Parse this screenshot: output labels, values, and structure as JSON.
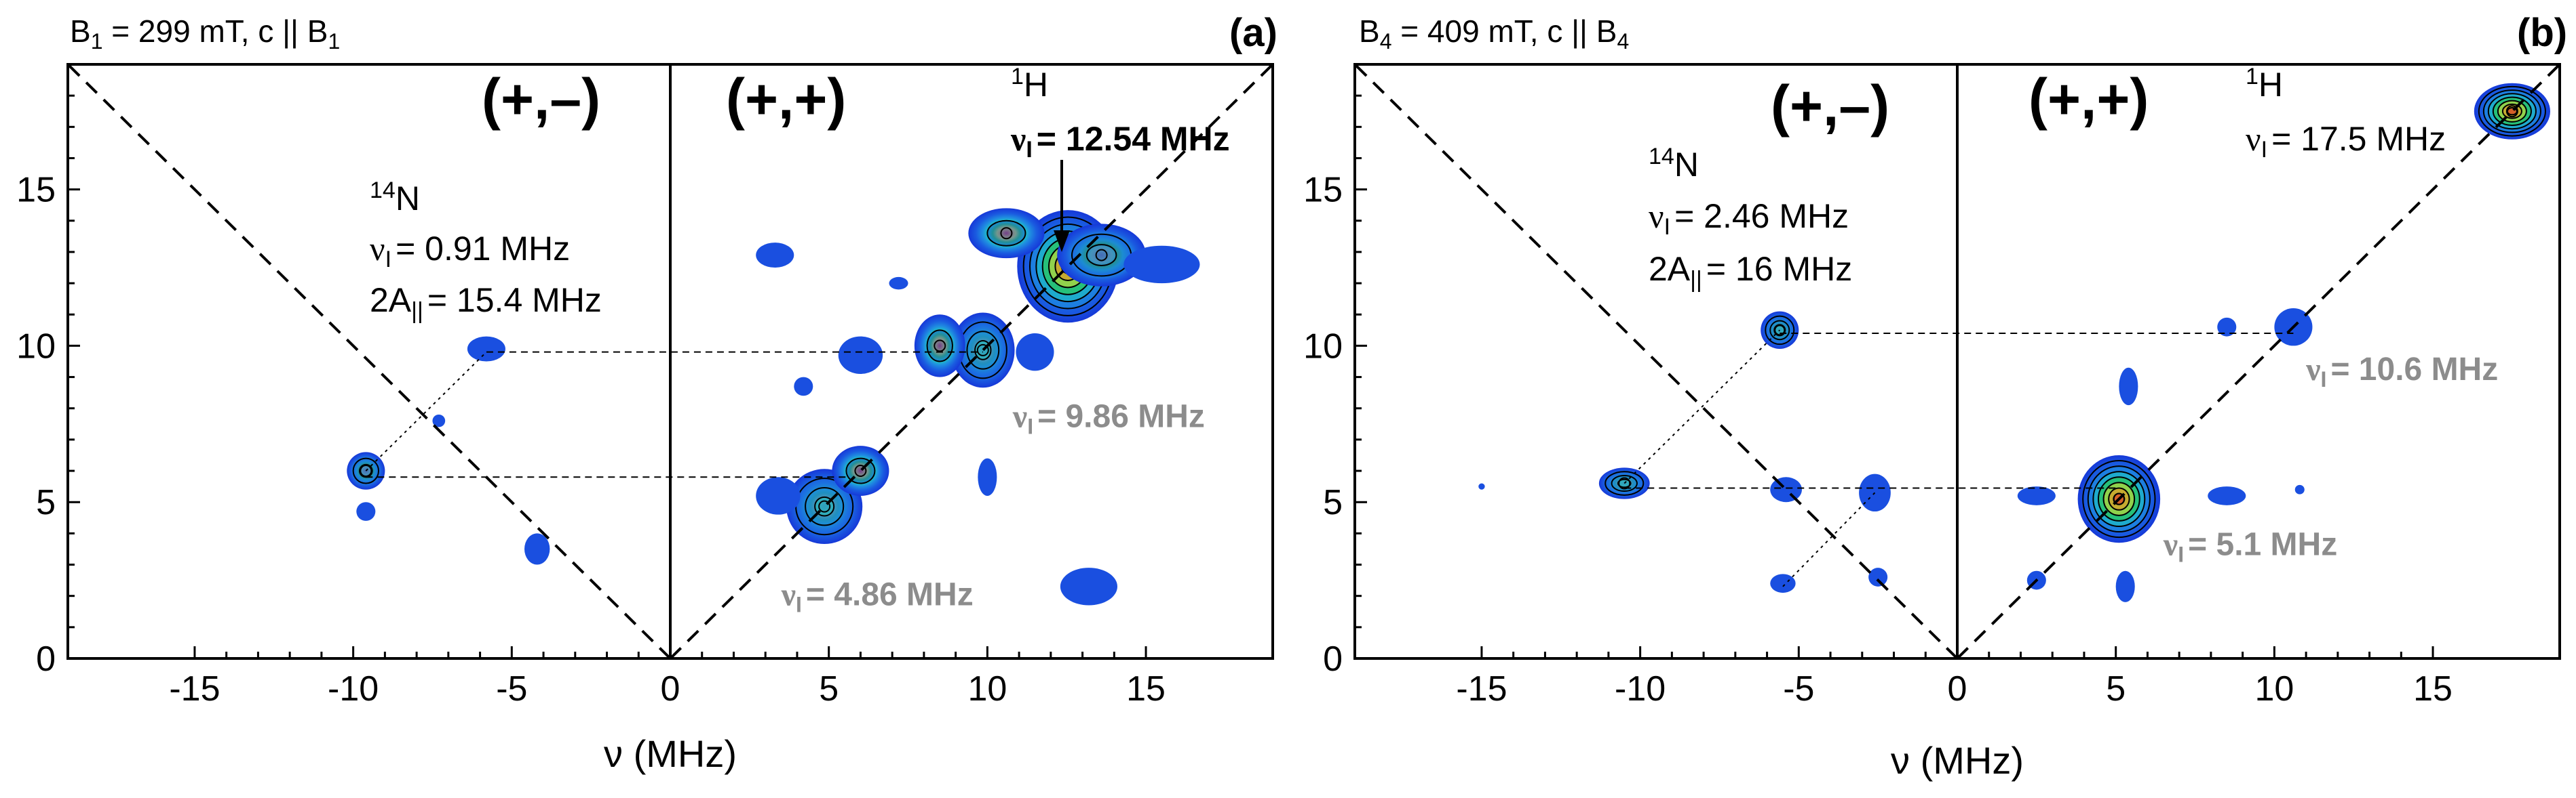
{
  "chart_data": [
    {
      "type": "heatmap",
      "panel_label": "(a)",
      "title_main": "B",
      "title_sub": "1",
      "title_rest": " = 299 mT, c || B",
      "title_sub2": "1",
      "xlabel": "ν (MHz)",
      "xlim": [
        -19,
        19
      ],
      "ylim": [
        0,
        19
      ],
      "xticks": [
        -15,
        -10,
        -5,
        0,
        5,
        10,
        15
      ],
      "yticks": [
        0,
        5,
        10,
        15
      ],
      "quadrant_minus": "(+,–)",
      "quadrant_plus": "(+,+)",
      "n14": {
        "nucleus": "N",
        "mass": "14",
        "nu_i": "= 0.91 MHz",
        "a_par": "= 15.4 MHz"
      },
      "h1": {
        "nucleus": "H",
        "mass": "1",
        "nu_i": "= 12.54 MHz"
      },
      "gray_labels": [
        {
          "text": "= 9.86 MHz",
          "x": 10.8,
          "y": 7.4
        },
        {
          "text": "= 4.86 MHz",
          "x": 3.5,
          "y": 1.7
        }
      ],
      "peaks": [
        {
          "x": 12.54,
          "y": 12.54,
          "sx": 1.6,
          "sy": 1.8,
          "level": 8
        },
        {
          "x": 13.6,
          "y": 12.9,
          "sx": 1.4,
          "sy": 1.0,
          "level": 3
        },
        {
          "x": 10.6,
          "y": 13.6,
          "sx": 1.2,
          "sy": 0.8,
          "level": 2
        },
        {
          "x": 15.5,
          "y": 12.6,
          "sx": 1.2,
          "sy": 0.6,
          "level": 1
        },
        {
          "x": 9.86,
          "y": 9.86,
          "sx": 1.0,
          "sy": 1.2,
          "level": 4
        },
        {
          "x": 8.5,
          "y": 10.0,
          "sx": 0.8,
          "sy": 1.0,
          "level": 2
        },
        {
          "x": 11.5,
          "y": 9.8,
          "sx": 0.6,
          "sy": 0.6,
          "level": 1
        },
        {
          "x": 6.0,
          "y": 9.7,
          "sx": 0.7,
          "sy": 0.6,
          "level": 1
        },
        {
          "x": 4.86,
          "y": 4.86,
          "sx": 1.2,
          "sy": 1.2,
          "level": 4
        },
        {
          "x": 6.0,
          "y": 6.0,
          "sx": 0.9,
          "sy": 0.8,
          "level": 2
        },
        {
          "x": 3.4,
          "y": 5.2,
          "sx": 0.7,
          "sy": 0.6,
          "level": 1
        },
        {
          "x": 13.2,
          "y": 2.3,
          "sx": 0.9,
          "sy": 0.6,
          "level": 1
        },
        {
          "x": 10.0,
          "y": 5.8,
          "sx": 0.3,
          "sy": 0.6,
          "level": 1
        },
        {
          "x": 3.3,
          "y": 12.9,
          "sx": 0.6,
          "sy": 0.4,
          "level": 1
        },
        {
          "x": 4.2,
          "y": 8.7,
          "sx": 0.3,
          "sy": 0.3,
          "level": 1
        },
        {
          "x": 7.2,
          "y": 12.0,
          "sx": 0.3,
          "sy": 0.2,
          "level": 1
        },
        {
          "x": -9.6,
          "y": 6.0,
          "sx": 0.6,
          "sy": 0.6,
          "level": 3
        },
        {
          "x": -5.8,
          "y": 9.9,
          "sx": 0.6,
          "sy": 0.4,
          "level": 1
        },
        {
          "x": -4.2,
          "y": 3.5,
          "sx": 0.4,
          "sy": 0.5,
          "level": 1
        },
        {
          "x": -9.6,
          "y": 4.7,
          "sx": 0.3,
          "sy": 0.3,
          "level": 1
        },
        {
          "x": -7.3,
          "y": 7.6,
          "sx": 0.2,
          "sy": 0.2,
          "level": 1
        }
      ],
      "dashed_h": [
        {
          "y": 9.8,
          "x0": -5.8,
          "x1": 9.86
        },
        {
          "y": 5.8,
          "x0": -9.6,
          "x1": 5.6
        }
      ],
      "dotted_diag": [
        {
          "x0": -9.6,
          "y0": 6.0,
          "x1": -5.8,
          "y1": 9.8
        }
      ]
    },
    {
      "type": "heatmap",
      "panel_label": "(b)",
      "title_main": "B",
      "title_sub": "4",
      "title_rest": " = 409 mT, c || B",
      "title_sub2": "4",
      "xlabel": "ν (MHz)",
      "xlim": [
        -19,
        19
      ],
      "ylim": [
        0,
        19
      ],
      "xticks": [
        -15,
        -10,
        -5,
        0,
        5,
        10,
        15
      ],
      "yticks": [
        0,
        5,
        10,
        15
      ],
      "quadrant_minus": "(+,–)",
      "quadrant_plus": "(+,+)",
      "n14": {
        "nucleus": "N",
        "mass": "14",
        "nu_i": "= 2.46 MHz",
        "a_par": "= 16 MHz"
      },
      "h1": {
        "nucleus": "H",
        "mass": "1",
        "nu_i": "= 17.5 MHz"
      },
      "gray_labels": [
        {
          "text": "= 10.6 MHz",
          "x": 11.0,
          "y": 8.9
        },
        {
          "text": "= 5.1 MHz",
          "x": 6.5,
          "y": 3.3
        }
      ],
      "peaks": [
        {
          "x": 17.5,
          "y": 17.5,
          "sx": 1.2,
          "sy": 0.9,
          "level": 8
        },
        {
          "x": 5.1,
          "y": 5.1,
          "sx": 1.3,
          "sy": 1.4,
          "level": 8
        },
        {
          "x": 5.4,
          "y": 8.7,
          "sx": 0.3,
          "sy": 0.6,
          "level": 1
        },
        {
          "x": 5.3,
          "y": 2.3,
          "sx": 0.3,
          "sy": 0.5,
          "level": 1
        },
        {
          "x": 2.5,
          "y": 5.2,
          "sx": 0.6,
          "sy": 0.3,
          "level": 1
        },
        {
          "x": 8.5,
          "y": 5.2,
          "sx": 0.6,
          "sy": 0.3,
          "level": 1
        },
        {
          "x": 10.6,
          "y": 10.6,
          "sx": 0.6,
          "sy": 0.6,
          "level": 1
        },
        {
          "x": 2.5,
          "y": 2.5,
          "sx": 0.3,
          "sy": 0.3,
          "level": 1
        },
        {
          "x": -5.6,
          "y": 10.5,
          "sx": 0.6,
          "sy": 0.6,
          "level": 4
        },
        {
          "x": -10.5,
          "y": 5.6,
          "sx": 0.8,
          "sy": 0.5,
          "level": 4
        },
        {
          "x": -5.4,
          "y": 5.4,
          "sx": 0.5,
          "sy": 0.4,
          "level": 1
        },
        {
          "x": -2.6,
          "y": 5.3,
          "sx": 0.5,
          "sy": 0.6,
          "level": 1
        },
        {
          "x": -5.5,
          "y": 2.4,
          "sx": 0.4,
          "sy": 0.3,
          "level": 1
        },
        {
          "x": -2.5,
          "y": 2.6,
          "sx": 0.3,
          "sy": 0.3,
          "level": 1
        },
        {
          "x": -15.0,
          "y": 5.5,
          "sx": 0.1,
          "sy": 0.1,
          "level": 1
        },
        {
          "x": 8.5,
          "y": 10.6,
          "sx": 0.3,
          "sy": 0.3,
          "level": 1
        },
        {
          "x": 10.8,
          "y": 5.4,
          "sx": 0.15,
          "sy": 0.15,
          "level": 1
        }
      ],
      "dashed_h": [
        {
          "y": 10.4,
          "x0": -5.6,
          "x1": 10.6
        },
        {
          "y": 5.45,
          "x0": -10.5,
          "x1": 5.1
        }
      ],
      "dotted_diag": [
        {
          "x0": -10.5,
          "y0": 5.6,
          "x1": -5.6,
          "y1": 10.5
        },
        {
          "x0": -5.5,
          "y0": 2.3,
          "x1": -2.6,
          "y1": 5.3
        }
      ]
    }
  ]
}
